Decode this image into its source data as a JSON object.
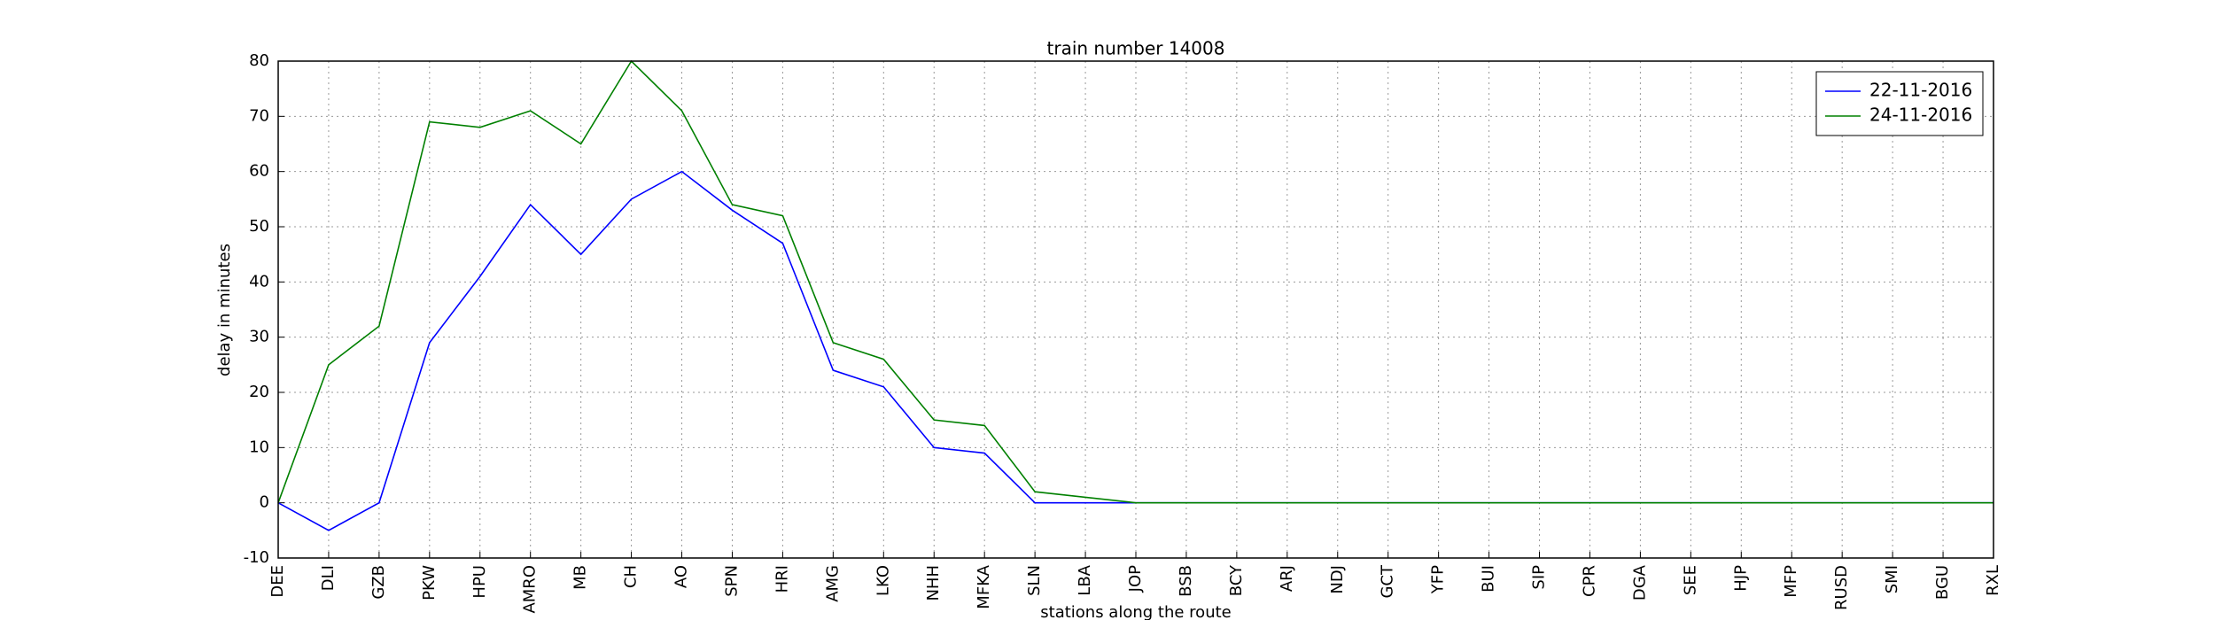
{
  "chart_data": {
    "type": "line",
    "title": "train number 14008",
    "x_label": "stations along the route",
    "y_label": "delay in minutes",
    "categories": [
      "DEE",
      "DLI",
      "GZB",
      "PKW",
      "HPU",
      "AMRO",
      "MB",
      "CH",
      "AO",
      "SPN",
      "HRI",
      "AMG",
      "LKO",
      "NHH",
      "MFKA",
      "SLN",
      "LBA",
      "JOP",
      "BSB",
      "BCY",
      "ARJ",
      "NDJ",
      "GCT",
      "YFP",
      "BUI",
      "SIP",
      "CPR",
      "DGA",
      "SEE",
      "HJP",
      "MFP",
      "RUSD",
      "SMI",
      "BGU",
      "RXL"
    ],
    "series": [
      {
        "name": "22-11-2016",
        "color": "#0000ff",
        "values": [
          0,
          -5,
          0,
          29,
          41,
          54,
          45,
          55,
          60,
          53,
          47,
          24,
          21,
          10,
          9,
          0,
          0,
          0,
          0,
          0,
          0,
          0,
          0,
          0,
          0,
          0,
          0,
          0,
          0,
          0,
          0,
          0,
          0,
          0,
          0
        ]
      },
      {
        "name": "24-11-2016",
        "color": "#008000",
        "values": [
          0,
          25,
          32,
          69,
          68,
          71,
          65,
          80,
          71,
          54,
          52,
          29,
          26,
          15,
          14,
          2,
          1,
          0,
          0,
          0,
          0,
          0,
          0,
          0,
          0,
          0,
          0,
          0,
          0,
          0,
          0,
          0,
          0,
          0,
          0
        ]
      }
    ],
    "ylim": [
      -10,
      80
    ],
    "yticks": [
      -10,
      0,
      10,
      20,
      30,
      40,
      50,
      60,
      70,
      80
    ],
    "grid": true,
    "legend": "upper right"
  }
}
